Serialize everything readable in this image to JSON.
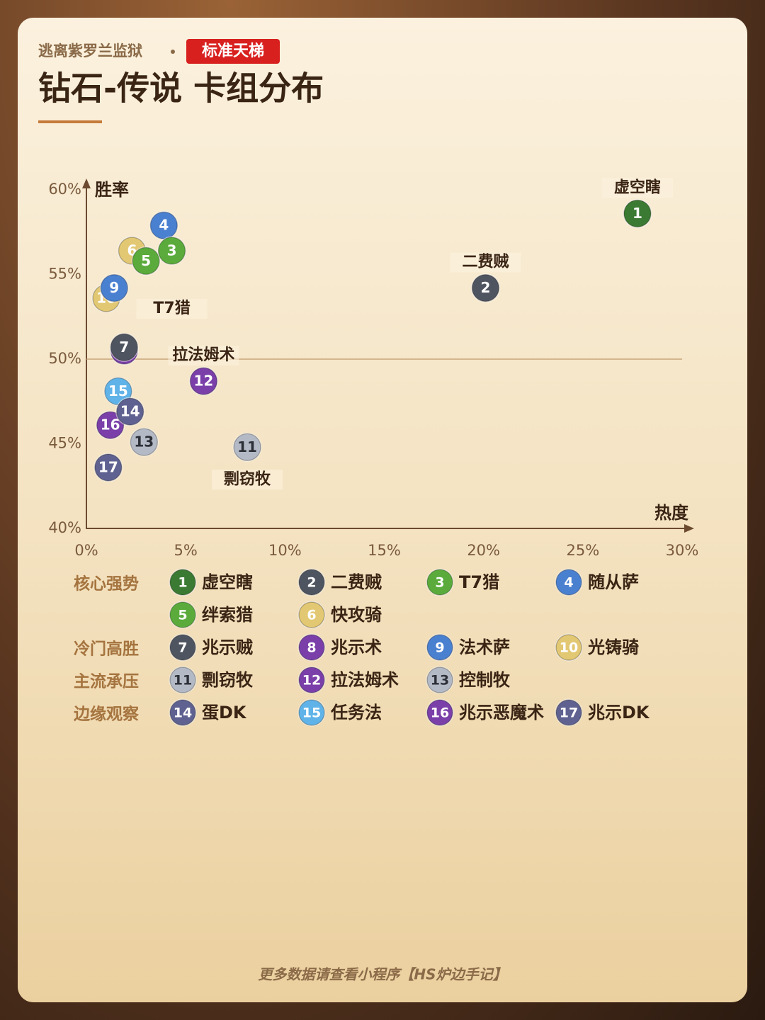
{
  "header": {
    "game": "逃离紫罗兰监狱",
    "mode": "标准天梯",
    "title": "钻石-传说 卡组分布"
  },
  "chart_data": {
    "type": "scatter",
    "x_label": "热度",
    "y_label": "胜率",
    "xlim": [
      0,
      30
    ],
    "ylim": [
      40,
      60
    ],
    "xticks": [
      {
        "value": 0,
        "label": "0%"
      },
      {
        "value": 5,
        "label": "5%"
      },
      {
        "value": 10,
        "label": "10%"
      },
      {
        "value": 15,
        "label": "15%"
      },
      {
        "value": 20,
        "label": "20%"
      },
      {
        "value": 25,
        "label": "25%"
      },
      {
        "value": 30,
        "label": "30%"
      }
    ],
    "yticks": [
      {
        "value": 40,
        "label": "40%"
      },
      {
        "value": 45,
        "label": "45%"
      },
      {
        "value": 50,
        "label": "50%"
      },
      {
        "value": 55,
        "label": "55%"
      },
      {
        "value": 60,
        "label": "60%"
      }
    ],
    "reference_y": 50,
    "series": [
      {
        "name": "核心强势",
        "decks": [
          {
            "id": 1,
            "name": "虚空瞎",
            "color": "#3b7a32",
            "x": 27.75,
            "y": 58.6,
            "label": "above"
          },
          {
            "id": 2,
            "name": "二费贼",
            "color": "#4f5560",
            "x": 20.1,
            "y": 54.2,
            "label": "above"
          },
          {
            "id": 3,
            "name": "T7猎",
            "color": "#5aab3c",
            "x": 4.3,
            "y": 56.4,
            "label": "below"
          },
          {
            "id": 4,
            "name": "随从萨",
            "color": "#4a80d0",
            "x": 3.9,
            "y": 57.9
          },
          {
            "id": 5,
            "name": "绊索猎",
            "color": "#5aab3c",
            "x": 3.0,
            "y": 55.8
          },
          {
            "id": 6,
            "name": "快攻骑",
            "color": "#e3c873",
            "x": 2.3,
            "y": 56.4
          }
        ]
      },
      {
        "name": "冷门高胜",
        "decks": [
          {
            "id": 7,
            "name": "兆示贼",
            "color": "#4f5560",
            "x": 1.9,
            "y": 50.7
          },
          {
            "id": 8,
            "name": "兆示术",
            "color": "#7a3fa8",
            "x": 1.9,
            "y": 50.5
          },
          {
            "id": 9,
            "name": "法术萨",
            "color": "#4a80d0",
            "x": 1.4,
            "y": 54.2
          },
          {
            "id": 10,
            "name": "光铸骑",
            "color": "#e3c873",
            "x": 1.0,
            "y": 53.6
          }
        ]
      },
      {
        "name": "主流承压",
        "decks": [
          {
            "id": 11,
            "name": "剽窃牧",
            "color": "#b3bac6",
            "x": 8.1,
            "y": 44.8,
            "label": "below"
          },
          {
            "id": 12,
            "name": "拉法姆术",
            "color": "#7a3fa8",
            "x": 5.9,
            "y": 48.7,
            "label": "above"
          },
          {
            "id": 13,
            "name": "控制牧",
            "color": "#b3bac6",
            "x": 2.9,
            "y": 45.1
          }
        ]
      },
      {
        "name": "边缘观察",
        "decks": [
          {
            "id": 14,
            "name": "蛋DK",
            "color": "#5f6290",
            "x": 2.2,
            "y": 46.9
          },
          {
            "id": 15,
            "name": "任务法",
            "color": "#5fb3e8",
            "x": 1.6,
            "y": 48.1
          },
          {
            "id": 16,
            "name": "兆示恶魔术",
            "color": "#7a3fa8",
            "x": 1.2,
            "y": 46.1
          },
          {
            "id": 17,
            "name": "兆示DK",
            "color": "#5f6290",
            "x": 1.1,
            "y": 43.6
          }
        ]
      }
    ]
  },
  "footer": "更多数据请查看小程序【HS炉边手记】"
}
